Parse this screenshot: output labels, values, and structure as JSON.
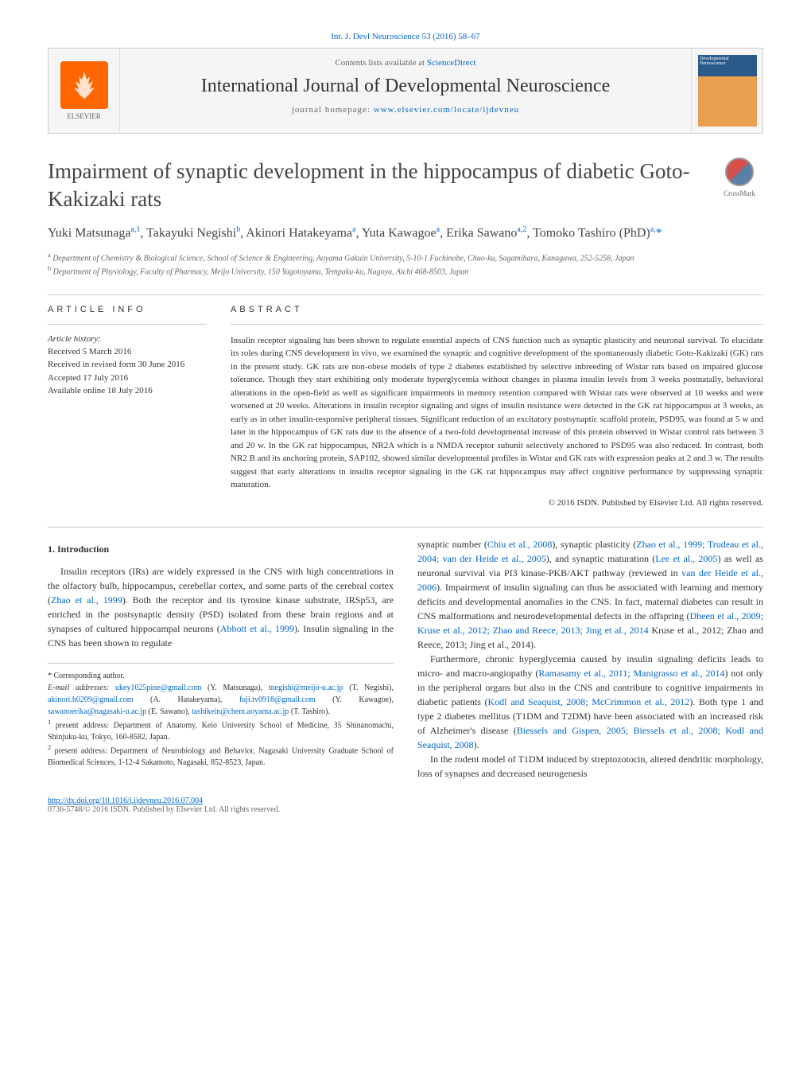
{
  "top_citation": "Int. J. Devl Neuroscience 53 (2016) 58–67",
  "header": {
    "contents_prefix": "Contents lists available at ",
    "contents_link": "ScienceDirect",
    "journal_name": "International Journal of Developmental Neuroscience",
    "homepage_prefix": "journal homepage: ",
    "homepage_link": "www.elsevier.com/locate/ijdevneu",
    "publisher": "ELSEVIER",
    "cover_label": "Developmental Neuroscience"
  },
  "crossmark_label": "CrossMark",
  "title": "Impairment of synaptic development in the hippocampus of diabetic Goto-Kakizaki rats",
  "authors_html": "Yuki Matsunaga<sup>a,1</sup>, Takayuki Negishi<sup>b</sup>, Akinori Hatakeyama<sup>a</sup>, Yuta Kawagoe<sup>a</sup>, Erika Sawano<sup>a,2</sup>, Tomoko Tashiro (PhD)<sup>a,</sup><span class='star'>*</span>",
  "affiliations": {
    "a": "Department of Chemistry & Biological Science, School of Science & Engineering, Aoyama Gakuin University, 5-10-1 Fuchinobe, Chuo-ku, Sagamihara, Kanagawa, 252-5258, Japan",
    "b": "Department of Physiology, Faculty of Pharmacy, Meijo University, 150 Yagotoyama, Tempaku-ku, Nagoya, Aichi 468-8503, Japan"
  },
  "article_info_heading": "article info",
  "history": {
    "label": "Article history:",
    "received": "Received 5 March 2016",
    "revised": "Received in revised form 30 June 2016",
    "accepted": "Accepted 17 July 2016",
    "online": "Available online 18 July 2016"
  },
  "abstract_heading": "abstract",
  "abstract": "Insulin receptor signaling has been shown to regulate essential aspects of CNS function such as synaptic plasticity and neuronal survival. To elucidate its roles during CNS development in vivo, we examined the synaptic and cognitive development of the spontaneously diabetic Goto-Kakizaki (GK) rats in the present study. GK rats are non-obese models of type 2 diabetes established by selective inbreeding of Wistar rats based on impaired glucose tolerance. Though they start exhibiting only moderate hyperglycemia without changes in plasma insulin levels from 3 weeks postnatally, behavioral alterations in the open-field as well as significant impairments in memory retention compared with Wistar rats were observed at 10 weeks and were worsened at 20 weeks. Alterations in insulin receptor signaling and signs of insulin resistance were detected in the GK rat hippocampus at 3 weeks, as early as in other insulin-responsive peripheral tissues. Significant reduction of an excitatory postsynaptic scaffold protein, PSD95, was found at 5 w and later in the hippocampus of GK rats due to the absence of a two-fold developmental increase of this protein observed in Wistar control rats between 3 and 20 w. In the GK rat hippocampus, NR2A which is a NMDA receptor subunit selectively anchored to PSD95 was also reduced. In contrast, both NR2 B and its anchoring protein, SAP102, showed similar developmental profiles in Wistar and GK rats with expression peaks at 2 and 3 w. The results suggest that early alterations in insulin receptor signaling in the GK rat hippocampus may affect cognitive performance by suppressing synaptic maturation.",
  "copyright": "© 2016 ISDN. Published by Elsevier Ltd. All rights reserved.",
  "intro_heading": "1. Introduction",
  "intro_p1_pre": "Insulin receptors (IRs) are widely expressed in the CNS with high concentrations in the olfactory bulb, hippocampus, cerebellar cortex, and some parts of the cerebral cortex (",
  "intro_p1_ref1": "Zhao et al., 1999",
  "intro_p1_mid": "). Both the receptor and its tyrosine kinase substrate, IRSp53, are enriched in the postsynaptic density (PSD) isolated from these brain regions and at synapses of cultured hippocampal neurons (",
  "intro_p1_ref2": "Abbott et al., 1999",
  "intro_p1_post": "). Insulin signaling in the CNS has been shown to regulate",
  "col2_p1_pre": "synaptic number (",
  "col2_p1_ref1": "Chiu et al., 2008",
  "col2_p1_mid1": "), synaptic plasticity (",
  "col2_p1_ref2": "Zhao et al., 1999; Trudeau et al., 2004; van der Heide et al., 2005",
  "col2_p1_mid2": "), and synaptic maturation (",
  "col2_p1_ref3": "Lee et al., 2005",
  "col2_p1_mid3": ") as well as neuronal survival via PI3 kinase-PKB/AKT pathway (reviewed in ",
  "col2_p1_ref4": "van der Heide et al., 2006",
  "col2_p1_mid4": "). Impairment of insulin signaling can thus be associated with learning and memory deficits and developmental anomalies in the CNS. In fact, maternal diabetes can result in CNS malformations and neurodevelopmental defects in the offspring (",
  "col2_p1_ref5": "Dheen et al., 2009; Kruse et al., 2012; Zhao and Reece, 2013; Jing et al., 2014",
  "col2_p1_post": " Kruse et al., 2012; Zhao and Reece, 2013; Jing et al., 2014).",
  "col2_p2_pre": "Furthermore, chronic hyperglycemia caused by insulin signaling deficits leads to micro- and macro-angiopathy (",
  "col2_p2_ref1": "Ramasamy et al., 2011; Manigrasso et al., 2014",
  "col2_p2_mid1": ") not only in the peripheral organs but also in the CNS and contribute to cognitive impairments in diabetic patients (",
  "col2_p2_ref2": "Kodl and Seaquist, 2008; McCrimmon et al., 2012",
  "col2_p2_mid2": "). Both type 1 and type 2 diabetes mellitus (T1DM and T2DM) have been associated with an increased risk of Alzheimer's disease (",
  "col2_p2_ref3": "Biessels and Gispen, 2005; Biessels et al., 2008; Kodl and Seaquist, 2008",
  "col2_p2_post": ").",
  "col2_p3": "In the rodent model of T1DM induced by streptozotocin, altered dendritic morphology, loss of synapses and decreased neurogenesis",
  "footnotes": {
    "corresponding": "Corresponding author.",
    "emails_label": "E-mail addresses:",
    "emails": [
      {
        "addr": "ukey1025pine@gmail.com",
        "who": "(Y. Matsunaga)"
      },
      {
        "addr": "tnegishi@meijo-u.ac.jp",
        "who": "(T. Negishi)"
      },
      {
        "addr": "akinori.h0209@gmail.com",
        "who": "(A. Hatakeyama)"
      },
      {
        "addr": "fuji.tv0918@gmail.com",
        "who": "(Y. Kawagoe)"
      },
      {
        "addr": "sawanoerika@nagasaki-u.ac.jp",
        "who": "(E. Sawano)"
      },
      {
        "addr": "tashikein@chem.aoyama.ac.jp",
        "who": "(T. Tashiro)"
      }
    ],
    "note1": "present address: Department of Anatomy, Keio University School of Medicine, 35 Shinanomachi, Shinjuku-ku, Tokyo, 160-8582, Japan.",
    "note2": "present address: Department of Neurobiology and Behavior, Nagasaki University Graduate School of Biomedical Sciences, 1-12-4 Sakamoto, Nagasaki, 852-8523, Japan."
  },
  "footer": {
    "doi": "http://dx.doi.org/10.1016/j.ijdevneu.2016.07.004",
    "issn_copyright": "0736-5748/© 2016 ISDN. Published by Elsevier Ltd. All rights reserved."
  },
  "colors": {
    "link": "#0066cc",
    "text": "#333333",
    "border": "#cccccc",
    "elsevier_orange": "#ff6600"
  }
}
